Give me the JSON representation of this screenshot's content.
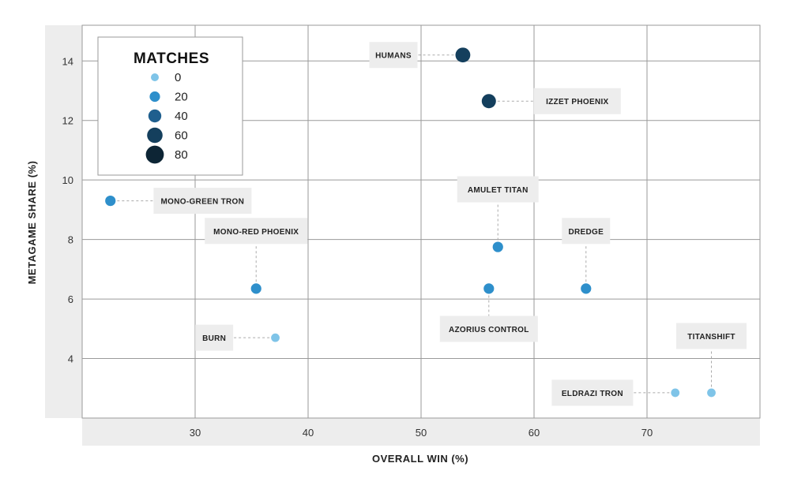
{
  "chart_data": {
    "type": "scatter",
    "xlabel": "OVERALL WIN (%)",
    "ylabel": "METAGAME SHARE (%)",
    "xlim": [
      20,
      80
    ],
    "ylim": [
      2,
      15.2
    ],
    "x_ticks": [
      30,
      40,
      50,
      60,
      70
    ],
    "y_ticks": [
      4,
      6,
      8,
      10,
      12,
      14
    ],
    "grid": true,
    "legend": {
      "title": "MATCHES",
      "placement": "top-left",
      "items": [
        {
          "label": "0",
          "matches": 0,
          "color": "#7fc4e8"
        },
        {
          "label": "20",
          "matches": 20,
          "color": "#2e8fcb"
        },
        {
          "label": "40",
          "matches": 40,
          "color": "#1f5f8e"
        },
        {
          "label": "60",
          "matches": 60,
          "color": "#143f5d"
        },
        {
          "label": "80",
          "matches": 80,
          "color": "#0d2535"
        }
      ]
    },
    "points": [
      {
        "label": "HUMANS",
        "x": 53.7,
        "y": 14.2,
        "matches": 55,
        "color": "#143f5d",
        "label_side": "left"
      },
      {
        "label": "IZZET PHOENIX",
        "x": 56,
        "y": 12.65,
        "matches": 50,
        "color": "#143f5d",
        "label_side": "right"
      },
      {
        "label": "MONO-GREEN TRON",
        "x": 22.5,
        "y": 9.3,
        "matches": 20,
        "color": "#2e8fcb",
        "label_side": "right"
      },
      {
        "label": "AMULET TITAN",
        "x": 56.8,
        "y": 7.75,
        "matches": 20,
        "color": "#2e8fcb",
        "label_side": "above"
      },
      {
        "label": "MONO-RED PHOENIX",
        "x": 35.4,
        "y": 6.35,
        "matches": 20,
        "color": "#2e8fcb",
        "label_side": "above"
      },
      {
        "label": "DREDGE",
        "x": 64.6,
        "y": 6.35,
        "matches": 20,
        "color": "#2e8fcb",
        "label_side": "above"
      },
      {
        "label": "AZORIUS CONTROL",
        "x": 56,
        "y": 6.35,
        "matches": 20,
        "color": "#2e8fcb",
        "label_side": "below"
      },
      {
        "label": "BURN",
        "x": 37.1,
        "y": 4.7,
        "matches": 5,
        "color": "#7fc4e8",
        "label_side": "left"
      },
      {
        "label": "ELDRAZI TRON",
        "x": 72.5,
        "y": 2.85,
        "matches": 5,
        "color": "#7fc4e8",
        "label_side": "left"
      },
      {
        "label": "TITANSHIFT",
        "x": 75.7,
        "y": 2.85,
        "matches": 5,
        "color": "#7fc4e8",
        "label_side": "above"
      }
    ]
  }
}
